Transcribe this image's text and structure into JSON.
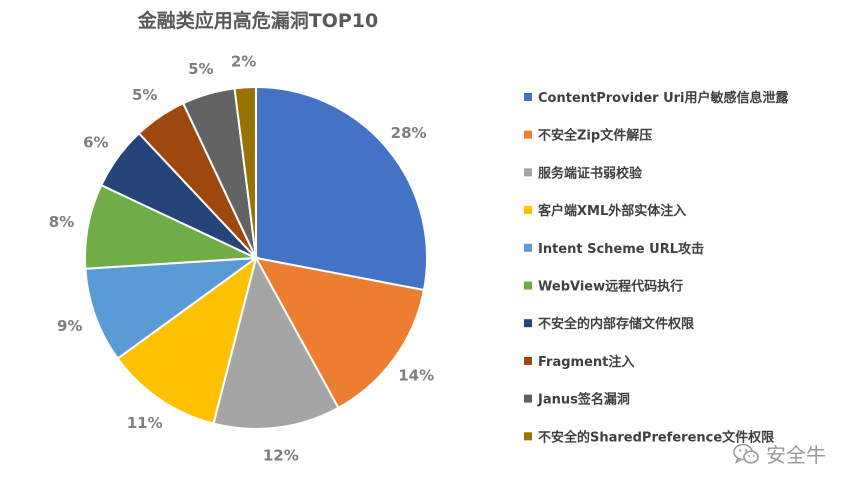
{
  "chart_data": {
    "type": "pie",
    "title": "金融类应用高危漏洞TOP10",
    "legend_position": "right",
    "slices": [
      {
        "label": "ContentProvider Uri用户敏感信息泄露",
        "value": 28,
        "display": "28%",
        "color": "#4472C4"
      },
      {
        "label": "不安全Zip文件解压",
        "value": 14,
        "display": "14%",
        "color": "#ED7D31"
      },
      {
        "label": "服务端证书弱校验",
        "value": 12,
        "display": "12%",
        "color": "#A5A5A5"
      },
      {
        "label": "客户端XML外部实体注入",
        "value": 11,
        "display": "11%",
        "color": "#FFC000"
      },
      {
        "label": "Intent Scheme URL攻击",
        "value": 9,
        "display": "9%",
        "color": "#5B9BD5"
      },
      {
        "label": "WebView远程代码执行",
        "value": 8,
        "display": "8%",
        "color": "#70AD47"
      },
      {
        "label": "不安全的内部存储文件权限",
        "value": 6,
        "display": "6%",
        "color": "#264478"
      },
      {
        "label": "Fragment注入",
        "value": 5,
        "display": "5%",
        "color": "#9E480E"
      },
      {
        "label": "Janus签名漏洞",
        "value": 5,
        "display": "5%",
        "color": "#636363"
      },
      {
        "label": "不安全的SharedPreference文件权限",
        "value": 2,
        "display": "2%",
        "color": "#997300"
      }
    ]
  },
  "watermark": {
    "text": "安全牛",
    "icon": "wechat-icon"
  }
}
